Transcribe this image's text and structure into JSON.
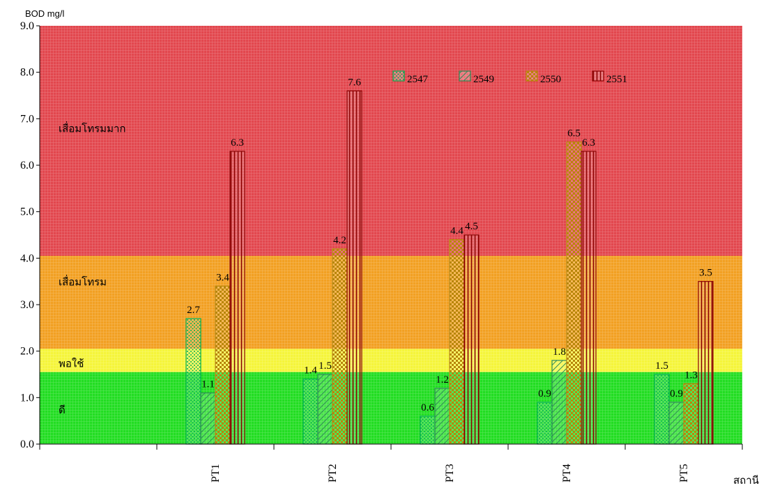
{
  "chart_data": {
    "type": "bar",
    "title": "",
    "ylabel": "BOD mg/l",
    "xlabel": "สถานี",
    "ylim": [
      0,
      9
    ],
    "yticks": [
      "0.0",
      "1.0",
      "2.0",
      "3.0",
      "4.0",
      "5.0",
      "6.0",
      "7.0",
      "8.0",
      "9.0"
    ],
    "categories": [
      "PT1",
      "PT2",
      "PT3",
      "PT4",
      "PT5"
    ],
    "series": [
      {
        "name": "2547",
        "values": [
          2.7,
          1.4,
          0.6,
          0.9,
          1.5
        ],
        "labels": [
          "2.7",
          "1.4",
          "0.6",
          "0.9",
          "1.5"
        ],
        "color": "#00b050",
        "pattern": "dots"
      },
      {
        "name": "2549",
        "values": [
          1.1,
          1.5,
          1.2,
          1.8,
          0.9
        ],
        "labels": [
          "1.1",
          "1.5",
          "1.2",
          "1.8",
          "0.9"
        ],
        "color": "#2e8b57",
        "pattern": "diagonal"
      },
      {
        "name": "2550",
        "values": [
          3.4,
          4.2,
          4.4,
          6.5,
          1.3
        ],
        "labels": [
          "3.4",
          "4.2",
          "4.4",
          "6.5",
          "1.3"
        ],
        "color": "#b8860b",
        "pattern": "checker"
      },
      {
        "name": "2551",
        "values": [
          6.3,
          7.6,
          4.5,
          6.3,
          3.5
        ],
        "labels": [
          "6.3",
          "7.6",
          "4.5",
          "6.3",
          "3.5"
        ],
        "color": "#8b0000",
        "pattern": "vertical"
      }
    ],
    "zones": [
      {
        "label": "ดี",
        "from": 0,
        "to": 1.55,
        "color": "#22dd22"
      },
      {
        "label": "พอใช้",
        "from": 1.55,
        "to": 2.05,
        "color": "#f5f53a"
      },
      {
        "label": "เสื่อมโทรม",
        "from": 2.05,
        "to": 4.05,
        "color": "#f2a022"
      },
      {
        "label": "เสื่อมโทรมมาก",
        "from": 4.05,
        "to": 9.0,
        "color": "#e2474e"
      }
    ],
    "legend_position": "top-right",
    "grid": false
  }
}
